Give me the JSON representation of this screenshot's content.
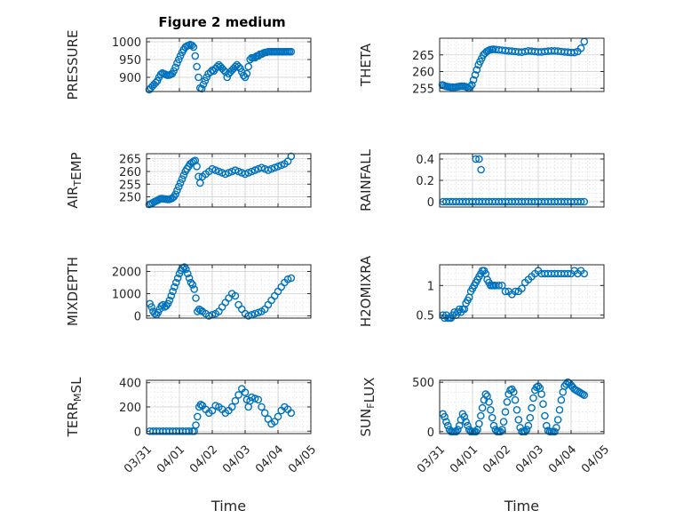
{
  "figure": {
    "title": "Figure 2 medium"
  },
  "chart_data": [
    {
      "type": "scatter",
      "ylabel": "PRESSURE",
      "ylim": [
        860,
        1010
      ],
      "yticks": [
        900,
        950,
        1000
      ],
      "xlim": [
        0,
        5
      ],
      "grid": true,
      "marker_color": "#0072BD",
      "x": [
        0.08,
        0.13,
        0.18,
        0.23,
        0.28,
        0.33,
        0.38,
        0.43,
        0.48,
        0.53,
        0.58,
        0.63,
        0.68,
        0.73,
        0.78,
        0.83,
        0.88,
        0.93,
        0.98,
        1.03,
        1.08,
        1.13,
        1.18,
        1.23,
        1.28,
        1.33,
        1.38,
        1.43,
        1.48,
        1.53,
        1.58,
        1.63,
        1.68,
        1.73,
        1.78,
        1.83,
        1.88,
        1.95,
        2.0,
        2.05,
        2.1,
        2.15,
        2.2,
        2.25,
        2.3,
        2.35,
        2.4,
        2.45,
        2.5,
        2.55,
        2.6,
        2.65,
        2.7,
        2.75,
        2.8,
        2.85,
        2.9,
        2.95,
        3.0,
        3.05,
        3.1,
        3.15,
        3.2,
        3.25,
        3.3,
        3.35,
        3.4,
        3.45,
        3.5,
        3.55,
        3.6,
        3.65,
        3.7,
        3.75,
        3.8,
        3.85,
        3.9,
        3.95,
        4.0,
        4.05,
        4.1,
        4.15,
        4.2,
        4.25,
        4.3,
        4.35,
        4.4
      ],
      "y": [
        865,
        870,
        875,
        880,
        885,
        890,
        900,
        908,
        912,
        910,
        908,
        906,
        906,
        908,
        910,
        918,
        928,
        940,
        950,
        960,
        970,
        978,
        985,
        988,
        990,
        992,
        990,
        985,
        960,
        930,
        900,
        870,
        868,
        880,
        890,
        900,
        910,
        915,
        920,
        918,
        925,
        930,
        935,
        930,
        925,
        920,
        915,
        900,
        910,
        915,
        920,
        925,
        930,
        935,
        930,
        925,
        915,
        905,
        900,
        910,
        930,
        950,
        955,
        955,
        955,
        960,
        960,
        965,
        965,
        968,
        970,
        970,
        972,
        972,
        972,
        972,
        972,
        972,
        972,
        972,
        972,
        972,
        972,
        972,
        972,
        972,
        972
      ]
    },
    {
      "type": "scatter",
      "ylabel": "THETA",
      "ylim": [
        254,
        270
      ],
      "yticks": [
        255,
        260,
        265
      ],
      "xlim": [
        0,
        5
      ],
      "grid": true,
      "marker_color": "#0072BD",
      "x": [
        0.08,
        0.13,
        0.18,
        0.23,
        0.28,
        0.33,
        0.38,
        0.43,
        0.48,
        0.53,
        0.58,
        0.63,
        0.68,
        0.73,
        0.78,
        0.83,
        0.88,
        0.93,
        0.98,
        1.03,
        1.08,
        1.13,
        1.18,
        1.23,
        1.28,
        1.33,
        1.38,
        1.43,
        1.48,
        1.53,
        1.58,
        1.63,
        1.7,
        1.8,
        1.9,
        2.0,
        2.1,
        2.2,
        2.3,
        2.4,
        2.5,
        2.6,
        2.7,
        2.8,
        2.9,
        3.0,
        3.1,
        3.2,
        3.3,
        3.4,
        3.5,
        3.6,
        3.7,
        3.8,
        3.9,
        4.0,
        4.1,
        4.2,
        4.3,
        4.4
      ],
      "y": [
        256,
        255.8,
        255.6,
        255.5,
        255.4,
        255.3,
        255.3,
        255.3,
        255.3,
        255.4,
        255.5,
        255.6,
        255.6,
        255.6,
        255.5,
        255.3,
        255,
        255.5,
        256,
        257.5,
        259,
        260.5,
        262,
        263,
        264,
        265,
        265.5,
        266,
        266.3,
        266.5,
        266.6,
        266.7,
        266.6,
        266.5,
        266.4,
        266.3,
        266.2,
        266.1,
        266,
        265.9,
        265.8,
        266,
        266.2,
        266.1,
        266,
        265.9,
        265.9,
        266,
        266.1,
        266.2,
        266.2,
        266.1,
        266,
        265.9,
        265.8,
        265.7,
        265.7,
        266,
        267,
        269
      ]
    },
    {
      "type": "scatter",
      "ylabel": "AIR_TEMP",
      "ylim": [
        246,
        267
      ],
      "yticks": [
        250,
        255,
        260,
        265
      ],
      "xlim": [
        0,
        5
      ],
      "grid": true,
      "marker_color": "#0072BD",
      "x": [
        0.08,
        0.13,
        0.18,
        0.23,
        0.28,
        0.33,
        0.38,
        0.43,
        0.48,
        0.53,
        0.58,
        0.63,
        0.68,
        0.73,
        0.78,
        0.83,
        0.88,
        0.93,
        0.98,
        1.03,
        1.08,
        1.13,
        1.18,
        1.23,
        1.28,
        1.33,
        1.38,
        1.43,
        1.48,
        1.53,
        1.58,
        1.63,
        1.7,
        1.8,
        1.9,
        2.0,
        2.1,
        2.2,
        2.3,
        2.4,
        2.5,
        2.6,
        2.7,
        2.8,
        2.9,
        3.0,
        3.1,
        3.2,
        3.3,
        3.4,
        3.5,
        3.6,
        3.7,
        3.8,
        3.9,
        4.0,
        4.1,
        4.2,
        4.3,
        4.4
      ],
      "y": [
        247,
        247.3,
        247.6,
        248,
        248.3,
        248.6,
        249,
        249.3,
        249.3,
        249.2,
        249.1,
        249,
        249,
        249.2,
        249.5,
        250,
        251,
        252.5,
        254,
        255.5,
        257,
        258.5,
        260,
        261,
        262,
        263,
        263.5,
        264,
        264.3,
        262,
        258,
        255.5,
        258,
        259,
        260,
        261,
        260.5,
        260,
        259.5,
        259,
        259.5,
        260,
        260.5,
        260,
        259.5,
        259,
        259.5,
        260,
        260.5,
        261,
        261.5,
        261,
        260.5,
        261,
        261.5,
        262,
        262.5,
        263,
        264,
        266
      ]
    },
    {
      "type": "scatter",
      "ylabel": "RAINFALL",
      "ylim": [
        -0.05,
        0.45
      ],
      "yticks": [
        0,
        0.2,
        0.4
      ],
      "xlim": [
        0,
        5
      ],
      "grid": true,
      "marker_color": "#0072BD",
      "x": [
        0.1,
        0.2,
        0.3,
        0.4,
        0.5,
        0.6,
        0.7,
        0.8,
        0.9,
        1.0,
        1.1,
        1.2,
        1.3,
        1.4,
        1.5,
        1.6,
        1.7,
        1.8,
        1.9,
        2.0,
        2.1,
        2.2,
        2.3,
        2.4,
        2.5,
        2.6,
        2.7,
        2.8,
        2.9,
        3.0,
        3.1,
        3.2,
        3.3,
        3.4,
        3.5,
        3.6,
        3.7,
        3.8,
        3.9,
        4.0,
        4.1,
        4.2,
        4.3,
        4.4,
        1.1,
        1.2,
        1.26
      ],
      "y": [
        0,
        0,
        0,
        0,
        0,
        0,
        0,
        0,
        0,
        0,
        0,
        0,
        0,
        0,
        0,
        0,
        0,
        0,
        0,
        0,
        0,
        0,
        0,
        0,
        0,
        0,
        0,
        0,
        0,
        0,
        0,
        0,
        0,
        0,
        0,
        0,
        0,
        0,
        0,
        0,
        0,
        0,
        0,
        0,
        0.4,
        0.4,
        0.3
      ]
    },
    {
      "type": "scatter",
      "ylabel": "MIXDEPTH",
      "ylim": [
        -100,
        2300
      ],
      "yticks": [
        0,
        1000,
        2000
      ],
      "xlim": [
        0,
        5
      ],
      "grid": true,
      "marker_color": "#0072BD",
      "x": [
        0.1,
        0.15,
        0.2,
        0.25,
        0.3,
        0.35,
        0.4,
        0.45,
        0.5,
        0.55,
        0.6,
        0.65,
        0.7,
        0.75,
        0.8,
        0.85,
        0.9,
        0.95,
        1.0,
        1.05,
        1.1,
        1.15,
        1.2,
        1.25,
        1.3,
        1.35,
        1.4,
        1.45,
        1.5,
        1.55,
        1.6,
        1.65,
        1.7,
        1.8,
        1.9,
        2.0,
        2.1,
        2.2,
        2.3,
        2.4,
        2.5,
        2.6,
        2.7,
        2.8,
        2.9,
        3.0,
        3.1,
        3.2,
        3.3,
        3.4,
        3.5,
        3.6,
        3.7,
        3.8,
        3.9,
        4.0,
        4.1,
        4.2,
        4.3,
        4.4
      ],
      "y": [
        550,
        400,
        200,
        100,
        50,
        150,
        300,
        450,
        500,
        400,
        450,
        550,
        700,
        900,
        1100,
        1300,
        1500,
        1700,
        1900,
        2050,
        2150,
        2200,
        2100,
        1900,
        1700,
        1500,
        1400,
        1200,
        800,
        200,
        300,
        250,
        200,
        100,
        0,
        50,
        100,
        200,
        400,
        600,
        800,
        1000,
        900,
        500,
        300,
        100,
        0,
        50,
        100,
        150,
        200,
        300,
        500,
        700,
        900,
        1100,
        1300,
        1500,
        1650,
        1700
      ]
    },
    {
      "type": "scatter",
      "ylabel": "H2OMIXRA",
      "ylim": [
        0.45,
        1.35
      ],
      "yticks": [
        0.5,
        1
      ],
      "xlim": [
        0,
        5
      ],
      "grid": true,
      "marker_color": "#0072BD",
      "x": [
        0.1,
        0.15,
        0.2,
        0.25,
        0.3,
        0.35,
        0.4,
        0.45,
        0.5,
        0.55,
        0.6,
        0.65,
        0.7,
        0.75,
        0.8,
        0.85,
        0.9,
        0.95,
        1.0,
        1.05,
        1.1,
        1.15,
        1.2,
        1.25,
        1.3,
        1.35,
        1.4,
        1.45,
        1.5,
        1.55,
        1.6,
        1.65,
        1.7,
        1.8,
        1.9,
        2.0,
        2.1,
        2.2,
        2.3,
        2.4,
        2.5,
        2.6,
        2.7,
        2.8,
        2.9,
        3.0,
        3.1,
        3.2,
        3.3,
        3.4,
        3.5,
        3.6,
        3.7,
        3.8,
        3.9,
        4.0,
        4.1,
        4.2,
        4.3,
        4.4
      ],
      "y": [
        0.5,
        0.45,
        0.5,
        0.45,
        0.45,
        0.45,
        0.5,
        0.55,
        0.5,
        0.55,
        0.6,
        0.55,
        0.6,
        0.6,
        0.7,
        0.75,
        0.8,
        0.9,
        0.95,
        1.0,
        1.05,
        1.1,
        1.15,
        1.2,
        1.25,
        1.25,
        1.2,
        1.1,
        1.05,
        1.0,
        1.0,
        1.0,
        1.0,
        1.0,
        1.0,
        0.9,
        0.9,
        0.85,
        0.9,
        0.9,
        0.95,
        1.05,
        1.1,
        1.15,
        1.2,
        1.25,
        1.2,
        1.2,
        1.2,
        1.2,
        1.2,
        1.2,
        1.2,
        1.2,
        1.2,
        1.2,
        1.25,
        1.2,
        1.25,
        1.2
      ]
    },
    {
      "type": "scatter",
      "ylabel": "TERR_MSL",
      "ylim": [
        -20,
        420
      ],
      "yticks": [
        0,
        200,
        400
      ],
      "xlim": [
        0,
        5
      ],
      "grid": true,
      "marker_color": "#0072BD",
      "x": [
        0.1,
        0.2,
        0.3,
        0.4,
        0.5,
        0.6,
        0.7,
        0.8,
        0.9,
        1.0,
        1.1,
        1.2,
        1.3,
        1.4,
        1.45,
        1.5,
        1.55,
        1.6,
        1.65,
        1.7,
        1.8,
        1.9,
        2.0,
        2.1,
        2.2,
        2.3,
        2.4,
        2.5,
        2.6,
        2.7,
        2.8,
        2.9,
        3.0,
        3.05,
        3.1,
        3.15,
        3.2,
        3.3,
        3.4,
        3.5,
        3.6,
        3.7,
        3.8,
        3.9,
        4.0,
        4.1,
        4.2,
        4.3,
        4.4
      ],
      "y": [
        0,
        0,
        0,
        0,
        0,
        0,
        0,
        0,
        0,
        0,
        0,
        0,
        0,
        0,
        0,
        50,
        120,
        200,
        220,
        210,
        180,
        150,
        170,
        210,
        200,
        180,
        150,
        170,
        200,
        250,
        300,
        350,
        320,
        260,
        200,
        250,
        280,
        270,
        260,
        200,
        150,
        100,
        60,
        80,
        120,
        170,
        200,
        180,
        150
      ]
    },
    {
      "type": "scatter",
      "ylabel": "SUN_FLUX",
      "ylim": [
        -20,
        520
      ],
      "yticks": [
        0,
        500
      ],
      "xlim": [
        0,
        5
      ],
      "grid": true,
      "marker_color": "#0072BD",
      "x": [
        0.1,
        0.15,
        0.2,
        0.25,
        0.3,
        0.35,
        0.4,
        0.45,
        0.5,
        0.55,
        0.6,
        0.65,
        0.7,
        0.75,
        0.8,
        0.85,
        0.9,
        0.95,
        1.0,
        1.05,
        1.1,
        1.15,
        1.2,
        1.25,
        1.3,
        1.35,
        1.4,
        1.45,
        1.5,
        1.55,
        1.6,
        1.65,
        1.7,
        1.75,
        1.8,
        1.85,
        1.9,
        1.95,
        2.0,
        2.05,
        2.1,
        2.15,
        2.2,
        2.25,
        2.3,
        2.35,
        2.4,
        2.45,
        2.5,
        2.55,
        2.6,
        2.65,
        2.7,
        2.75,
        2.8,
        2.85,
        2.9,
        2.95,
        3.0,
        3.05,
        3.1,
        3.15,
        3.2,
        3.25,
        3.3,
        3.35,
        3.4,
        3.45,
        3.5,
        3.55,
        3.6,
        3.65,
        3.7,
        3.75,
        3.8,
        3.85,
        3.9,
        3.95,
        4.0,
        4.05,
        4.1,
        4.15,
        4.2,
        4.25,
        4.3,
        4.35,
        4.4
      ],
      "y": [
        180,
        150,
        100,
        60,
        20,
        0,
        0,
        0,
        0,
        20,
        60,
        120,
        180,
        150,
        100,
        60,
        20,
        0,
        0,
        0,
        0,
        20,
        80,
        160,
        240,
        320,
        380,
        360,
        300,
        220,
        140,
        60,
        20,
        0,
        0,
        0,
        20,
        100,
        200,
        300,
        380,
        420,
        430,
        400,
        320,
        220,
        120,
        40,
        0,
        0,
        0,
        20,
        60,
        140,
        240,
        340,
        420,
        450,
        460,
        440,
        380,
        280,
        160,
        60,
        10,
        0,
        0,
        0,
        0,
        40,
        120,
        220,
        320,
        400,
        460,
        480,
        500,
        490,
        470,
        450,
        430,
        420,
        410,
        400,
        390,
        380,
        370
      ]
    }
  ],
  "x_axis": {
    "label": "Time",
    "ticks": [
      0,
      1,
      2,
      3,
      4,
      5
    ],
    "tick_labels": [
      "03/31",
      "04/01",
      "04/02",
      "04/03",
      "04/04",
      "04/05"
    ]
  }
}
